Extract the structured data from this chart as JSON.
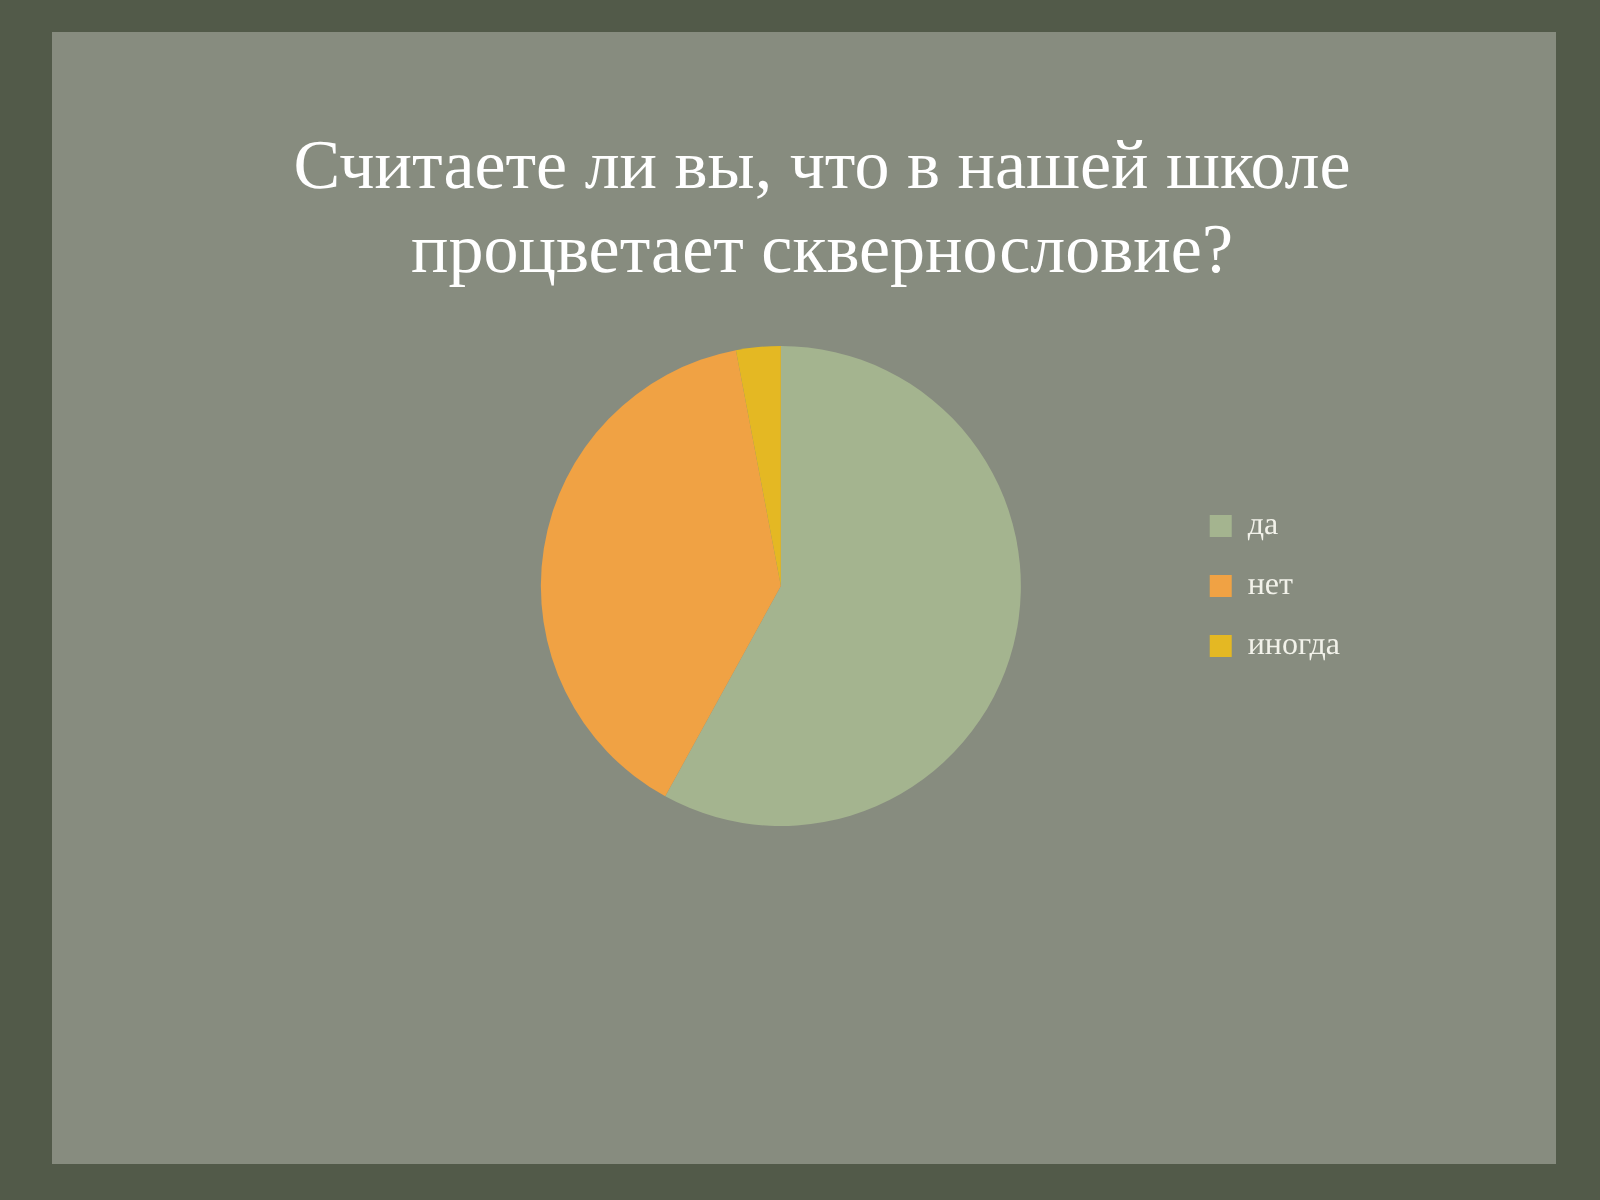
{
  "chart_data": {
    "type": "pie",
    "title": "Считаете ли вы, что в нашей школе процветает сквернословие?",
    "categories": [
      "да",
      "нет",
      "иногда"
    ],
    "values": [
      58,
      39,
      3
    ],
    "colors": [
      "#a4b48f",
      "#f0a244",
      "#e4b823"
    ],
    "legend": "right"
  }
}
